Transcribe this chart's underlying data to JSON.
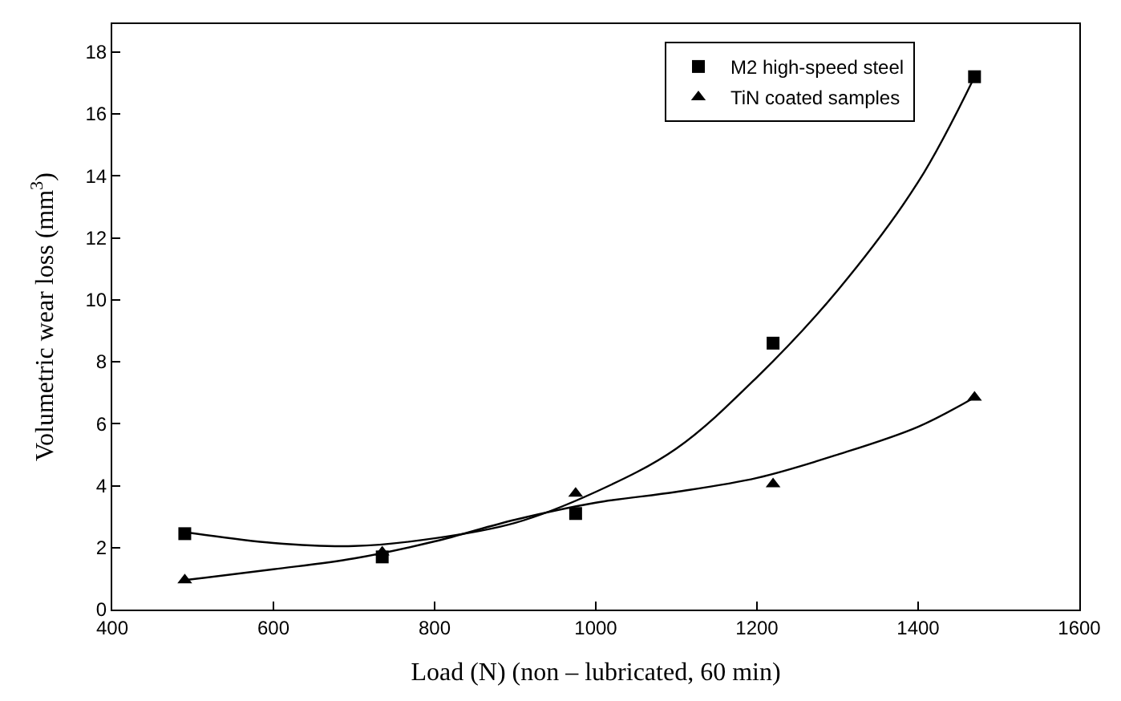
{
  "chart_data": {
    "type": "scatter",
    "xlabel": "Load (N) (non – lubricated, 60 min)",
    "ylabel": "Volumetric wear loss (mm$^{3}$)",
    "xlim": [
      400,
      1600
    ],
    "xticks": [
      400,
      600,
      800,
      1000,
      1200,
      1400,
      1600
    ],
    "ylim": [
      0,
      18.9
    ],
    "yticks": [
      0,
      2,
      4,
      6,
      8,
      10,
      12,
      14,
      16,
      18
    ],
    "legend": "top right",
    "series": [
      {
        "name": "M2 high-speed steel",
        "marker": "square",
        "color": "#000000",
        "x": [
          490,
          735,
          975,
          1220,
          1470
        ],
        "values": [
          2.45,
          1.7,
          3.1,
          8.6,
          17.2
        ]
      },
      {
        "name": "TiN coated samples",
        "marker": "triangle",
        "color": "#000000",
        "x": [
          490,
          735,
          975,
          1220,
          1470
        ],
        "values": [
          0.95,
          1.85,
          3.75,
          4.05,
          6.85
        ]
      },
      {
        "type": "line",
        "marker": "none",
        "color": "#000000",
        "x": [
          490,
          600,
          700,
          800,
          900,
          1000,
          1100,
          1200,
          1300,
          1400,
          1470
        ],
        "values": [
          2.5,
          2.15,
          2.05,
          2.3,
          2.8,
          3.8,
          5.2,
          7.5,
          10.3,
          13.8,
          17.2
        ]
      },
      {
        "type": "line",
        "marker": "none",
        "color": "#000000",
        "x": [
          490,
          600,
          700,
          800,
          900,
          1000,
          1100,
          1200,
          1300,
          1400,
          1470
        ],
        "values": [
          0.95,
          1.3,
          1.65,
          2.2,
          2.9,
          3.45,
          3.8,
          4.25,
          5.0,
          5.9,
          6.85
        ]
      }
    ]
  }
}
